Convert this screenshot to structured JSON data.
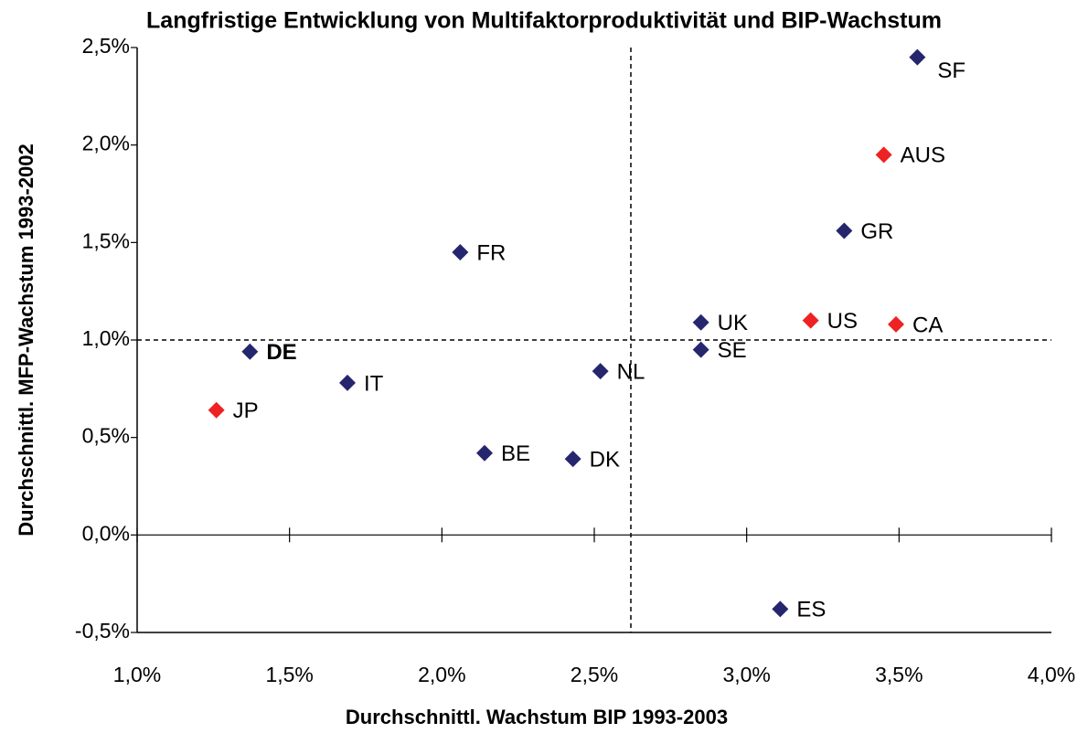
{
  "chart_data": {
    "type": "scatter",
    "title": "Langfristige Entwicklung von Multifaktorproduktivität und BIP-Wachstum",
    "x_label": "Durchschnittl. Wachstum BIP 1993-2003",
    "y_label": "Durchschnittl. MFP-Wachstum 1993-2002",
    "xlim": [
      1.0,
      4.0
    ],
    "ylim": [
      -0.5,
      2.5
    ],
    "xticks": [
      {
        "value": 1.0,
        "label": "1,0%"
      },
      {
        "value": 1.5,
        "label": "1,5%"
      },
      {
        "value": 2.0,
        "label": "2,0%"
      },
      {
        "value": 2.5,
        "label": "2,5%"
      },
      {
        "value": 3.0,
        "label": "3,0%"
      },
      {
        "value": 3.5,
        "label": "3,5%"
      },
      {
        "value": 4.0,
        "label": "4,0%"
      }
    ],
    "yticks": [
      {
        "value": -0.5,
        "label": "-0,5%"
      },
      {
        "value": 0.0,
        "label": "0,0%"
      },
      {
        "value": 0.5,
        "label": "0,5%"
      },
      {
        "value": 1.0,
        "label": "1,0%"
      },
      {
        "value": 1.5,
        "label": "1,5%"
      },
      {
        "value": 2.0,
        "label": "2,0%"
      },
      {
        "value": 2.5,
        "label": "2,5%"
      }
    ],
    "reference_lines": {
      "x": 2.62,
      "y": 1.0
    },
    "points": [
      {
        "label": "SF",
        "x": 3.56,
        "y": 2.45,
        "color": "#26266e",
        "label_color": "#000000"
      },
      {
        "label": "AUS",
        "x": 3.45,
        "y": 1.95,
        "color": "#ee2222",
        "label_color": "#ee2222"
      },
      {
        "label": "GR",
        "x": 3.32,
        "y": 1.56,
        "color": "#26266e",
        "label_color": "#000000"
      },
      {
        "label": "FR",
        "x": 2.06,
        "y": 1.45,
        "color": "#26266e",
        "label_color": "#000000"
      },
      {
        "label": "UK",
        "x": 2.85,
        "y": 1.09,
        "color": "#26266e",
        "label_color": "#000000"
      },
      {
        "label": "US",
        "x": 3.21,
        "y": 1.1,
        "color": "#ee2222",
        "label_color": "#ee2222"
      },
      {
        "label": "CA",
        "x": 3.49,
        "y": 1.08,
        "color": "#ee2222",
        "label_color": "#ee2222"
      },
      {
        "label": "DE",
        "x": 1.37,
        "y": 0.94,
        "color": "#26266e",
        "label_color": "#3355aa",
        "label_weight": "bold"
      },
      {
        "label": "SE",
        "x": 2.85,
        "y": 0.95,
        "color": "#26266e",
        "label_color": "#000000"
      },
      {
        "label": "NL",
        "x": 2.52,
        "y": 0.84,
        "color": "#26266e",
        "label_color": "#000000"
      },
      {
        "label": "IT",
        "x": 1.69,
        "y": 0.78,
        "color": "#26266e",
        "label_color": "#000000"
      },
      {
        "label": "JP",
        "x": 1.26,
        "y": 0.64,
        "color": "#ee2222",
        "label_color": "#ee2222"
      },
      {
        "label": "BE",
        "x": 2.14,
        "y": 0.42,
        "color": "#26266e",
        "label_color": "#000000"
      },
      {
        "label": "DK",
        "x": 2.43,
        "y": 0.39,
        "color": "#26266e",
        "label_color": "#000000"
      },
      {
        "label": "ES",
        "x": 3.11,
        "y": -0.38,
        "color": "#26266e",
        "label_color": "#000000"
      }
    ]
  }
}
